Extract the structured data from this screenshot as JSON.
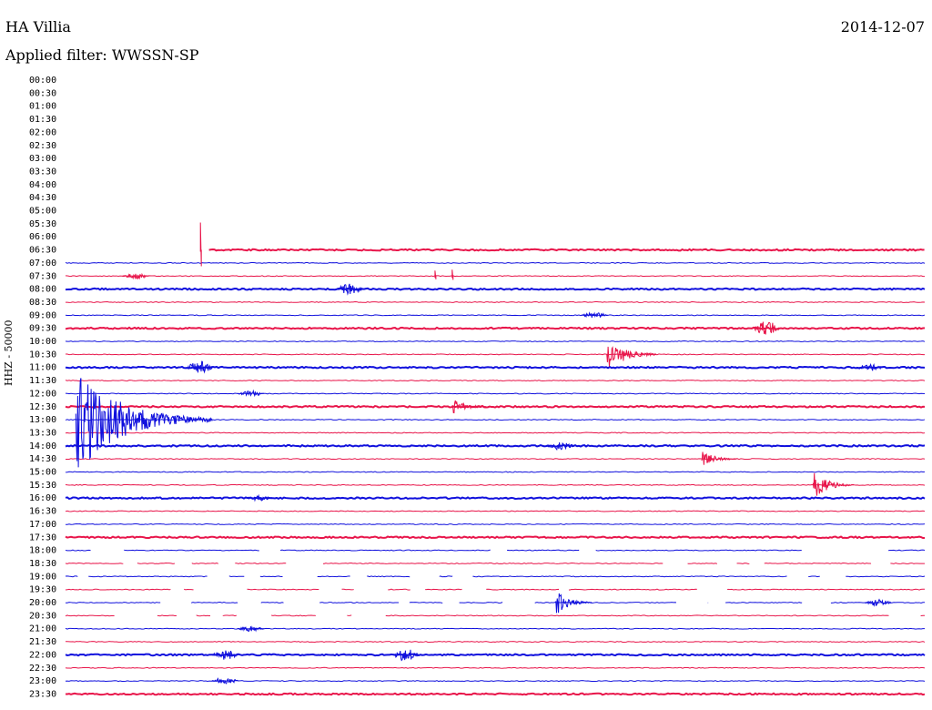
{
  "header": {
    "station": "HA Villia",
    "date": "2014-12-07",
    "filter": "Applied filter: WWSSN-SP"
  },
  "chart_data": {
    "type": "line",
    "title": "HA Villia",
    "subtitle": "Applied filter: WWSSN-SP",
    "ylabel": "HHZ - 50000",
    "date": "2014-12-07",
    "row_labels": [
      "00:00",
      "00:30",
      "01:00",
      "01:30",
      "02:00",
      "02:30",
      "03:00",
      "03:30",
      "04:00",
      "04:30",
      "05:00",
      "05:30",
      "06:00",
      "06:30",
      "07:00",
      "07:30",
      "08:00",
      "08:30",
      "09:00",
      "09:30",
      "10:00",
      "10:30",
      "11:00",
      "11:30",
      "12:00",
      "12:30",
      "13:00",
      "13:30",
      "14:00",
      "14:30",
      "15:00",
      "15:30",
      "16:00",
      "16:30",
      "17:00",
      "17:30",
      "18:00",
      "18:30",
      "19:00",
      "19:30",
      "20:00",
      "20:30",
      "21:00",
      "21:30",
      "22:00",
      "22:30",
      "23:00",
      "23:30"
    ],
    "first_trace_row": "06:30",
    "colors": {
      "blue": "#1010dd",
      "red": "#e8154a"
    },
    "trace_colors_by_row": [
      "red",
      "blue"
    ],
    "thick_rows": [
      "06:30",
      "08:00",
      "09:30",
      "11:00",
      "12:30",
      "14:00",
      "16:00",
      "17:30",
      "22:00",
      "23:30"
    ],
    "events": [
      {
        "row": "06:30",
        "x_frac": 0.157,
        "amp": 30,
        "kind": "spike"
      },
      {
        "row": "07:30",
        "x_frac": 0.066,
        "amp": 3,
        "kind": "burst"
      },
      {
        "row": "07:30",
        "x_frac": 0.43,
        "amp": 6,
        "kind": "spike"
      },
      {
        "row": "07:30",
        "x_frac": 0.45,
        "amp": 7,
        "kind": "spike"
      },
      {
        "row": "08:00",
        "x_frac": 0.315,
        "amp": 6,
        "kind": "burst"
      },
      {
        "row": "09:00",
        "x_frac": 0.6,
        "amp": 3,
        "kind": "burst"
      },
      {
        "row": "09:30",
        "x_frac": 0.8,
        "amp": 8,
        "kind": "burst"
      },
      {
        "row": "10:30",
        "x_frac": 0.63,
        "amp": 22,
        "kind": "quake"
      },
      {
        "row": "11:00",
        "x_frac": 0.14,
        "amp": 7,
        "kind": "burst"
      },
      {
        "row": "11:00",
        "x_frac": 0.92,
        "amp": 4,
        "kind": "burst"
      },
      {
        "row": "12:00",
        "x_frac": 0.2,
        "amp": 3,
        "kind": "burst"
      },
      {
        "row": "12:30",
        "x_frac": 0.45,
        "amp": 10,
        "kind": "quake"
      },
      {
        "row": "13:00",
        "x_frac": 0.012,
        "amp": 60,
        "kind": "quake"
      },
      {
        "row": "14:00",
        "x_frac": 0.56,
        "amp": 5,
        "kind": "burst"
      },
      {
        "row": "14:30",
        "x_frac": 0.74,
        "amp": 10,
        "kind": "quake"
      },
      {
        "row": "15:30",
        "x_frac": 0.87,
        "amp": 18,
        "kind": "quake"
      },
      {
        "row": "16:00",
        "x_frac": 0.21,
        "amp": 3,
        "kind": "burst"
      },
      {
        "row": "20:00",
        "x_frac": 0.57,
        "amp": 16,
        "kind": "quake"
      },
      {
        "row": "20:00",
        "x_frac": 0.93,
        "amp": 4,
        "kind": "burst"
      },
      {
        "row": "21:00",
        "x_frac": 0.2,
        "amp": 3,
        "kind": "burst"
      },
      {
        "row": "22:00",
        "x_frac": 0.17,
        "amp": 6,
        "kind": "burst"
      },
      {
        "row": "22:00",
        "x_frac": 0.38,
        "amp": 7,
        "kind": "burst"
      },
      {
        "row": "23:00",
        "x_frac": 0.17,
        "amp": 4,
        "kind": "burst"
      }
    ]
  }
}
